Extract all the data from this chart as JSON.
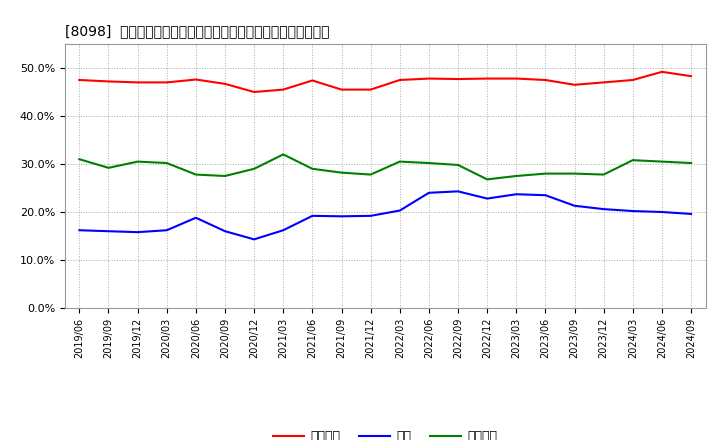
{
  "title": "[8098]  売上債権、在庫、買入債務の総資産に対する比率の推移",
  "background_color": "#ffffff",
  "plot_bg_color": "#ffffff",
  "grid_color": "#aaaaaa",
  "title_fontsize": 10,
  "legend_labels": [
    "売上債権",
    "在庫",
    "買入債務"
  ],
  "line_colors": [
    "#ff0000",
    "#0000ff",
    "#008000"
  ],
  "line_width": 1.5,
  "x_labels": [
    "2019/06",
    "2019/09",
    "2019/12",
    "2020/03",
    "2020/06",
    "2020/09",
    "2020/12",
    "2021/03",
    "2021/06",
    "2021/09",
    "2021/12",
    "2022/03",
    "2022/06",
    "2022/09",
    "2022/12",
    "2023/03",
    "2023/06",
    "2023/09",
    "2023/12",
    "2024/03",
    "2024/06",
    "2024/09"
  ],
  "series": {
    "売上債権": [
      47.5,
      47.2,
      47.0,
      47.0,
      47.6,
      46.7,
      45.0,
      45.5,
      47.4,
      45.5,
      45.5,
      47.5,
      47.8,
      47.7,
      47.8,
      47.8,
      47.5,
      46.5,
      47.0,
      47.5,
      49.2,
      48.3
    ],
    "在庫": [
      16.2,
      16.0,
      15.8,
      16.2,
      18.8,
      16.0,
      14.3,
      16.2,
      19.2,
      19.1,
      19.2,
      20.3,
      24.0,
      24.3,
      22.8,
      23.7,
      23.5,
      21.3,
      20.6,
      20.2,
      20.0,
      19.6
    ],
    "買入債務": [
      31.0,
      29.2,
      30.5,
      30.2,
      27.8,
      27.5,
      29.0,
      32.0,
      29.0,
      28.2,
      27.8,
      30.5,
      30.2,
      29.8,
      26.8,
      27.5,
      28.0,
      28.0,
      27.8,
      30.8,
      30.5,
      30.2
    ]
  },
  "ylim": [
    0,
    55
  ],
  "yticks": [
    0,
    10,
    20,
    30,
    40,
    50
  ],
  "ytick_labels": [
    "0.0%",
    "10.0%",
    "20.0%",
    "30.0%",
    "40.0%",
    "50.0%"
  ]
}
